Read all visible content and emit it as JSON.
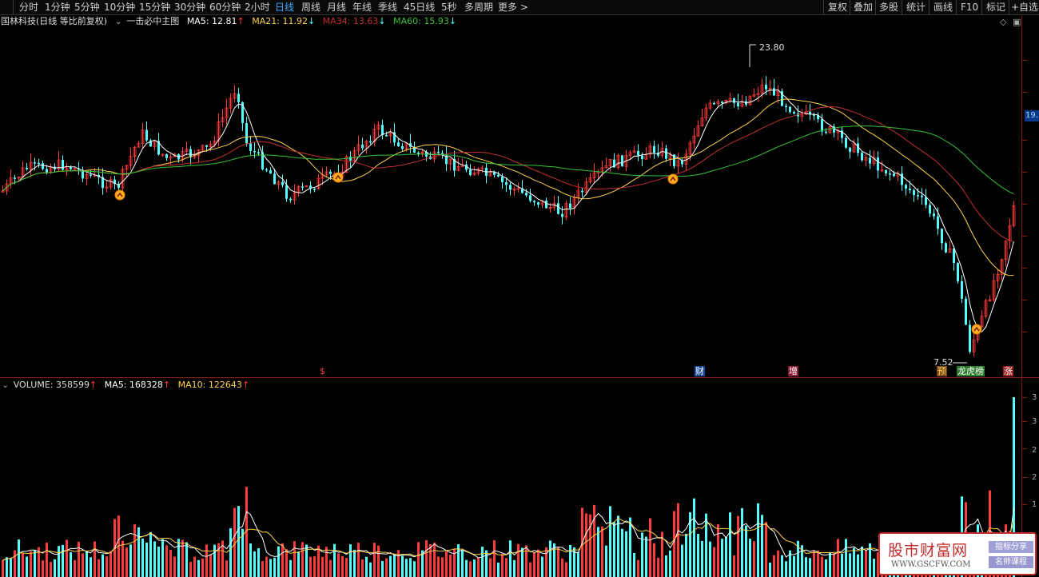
{
  "toolbar": {
    "periods": [
      "分时",
      "1分钟",
      "5分钟",
      "10分钟",
      "15分钟",
      "30分钟",
      "60分钟",
      "2小时",
      "日线",
      "周线",
      "月线",
      "年线",
      "季线",
      "45日线",
      "5秒",
      "多周期",
      "更多 >"
    ],
    "active_period": "日线",
    "right_items": [
      "复权",
      "叠加",
      "多股",
      "统计",
      "画线",
      "F10",
      "标记",
      "+自选"
    ]
  },
  "main_header": {
    "stock": "国林科技(日线 等比前复权)",
    "indicator": "一击必中主图",
    "ma5": "MA5: 12.81",
    "ma21": "MA21: 11.92",
    "ma34": "MA34: 13.63",
    "ma60": "MA60: 15.93",
    "arrows": {
      "ma5": "↑",
      "ma21": "↓",
      "ma34": "↓",
      "ma60": "↓"
    },
    "colors": {
      "ma5": "#ffffff",
      "ma21": "#ffd24a",
      "ma34": "#c03030",
      "ma60": "#35c335"
    }
  },
  "vol_header": {
    "volume": "VOLUME: 358599",
    "ma5": "MA5: 168328",
    "ma10": "MA10: 122643",
    "arrow": "↑"
  },
  "annotations": {
    "high": "23.80",
    "low": "7.52"
  },
  "price_tag": "19.",
  "vol_axis_labels": [
    "3",
    "3",
    "2",
    "2",
    "1"
  ],
  "event_tags": [
    {
      "text": "$",
      "color": "#ff3b3b",
      "bg": "transparent"
    },
    {
      "text": "财",
      "color": "#ffffff",
      "bg": "#1b4a9a"
    },
    {
      "text": "增",
      "color": "#ffffff",
      "bg": "#8a1c3a"
    },
    {
      "text": "预",
      "color": "#ffcc66",
      "bg": "#7a4a10"
    },
    {
      "text": "龙虎榜",
      "color": "#ffffff",
      "bg": "#2a7a2a"
    },
    {
      "text": "涨",
      "color": "#ffffff",
      "bg": "#9a1c1c"
    }
  ],
  "watermark": {
    "title": "股市财富网",
    "url": "WWW.GSCFW.COM",
    "badge1": "指标分享",
    "badge2": "名师课程"
  },
  "colors": {
    "up": "#ff3b3b",
    "down": "#54ffff",
    "accent": "#3ea8ff"
  }
}
